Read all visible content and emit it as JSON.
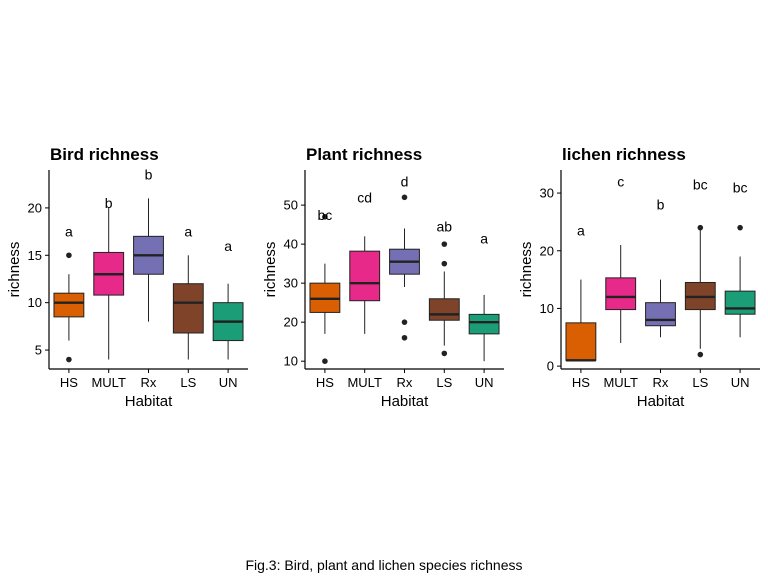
{
  "caption": "Fig.3: Bird, plant and lichen species richness",
  "palette": {
    "HS": "#d95f02",
    "MULT": "#e7298a",
    "Rx": "#7570b3",
    "LS": "#7f432a",
    "UN": "#1b9e77"
  },
  "chart_data": [
    {
      "type": "box",
      "title": "Bird richness",
      "xlabel": "Habitat",
      "ylabel": "richness",
      "ylim": [
        3,
        24
      ],
      "yticks": [
        5,
        10,
        15,
        20
      ],
      "categories": [
        "HS",
        "MULT",
        "Rx",
        "LS",
        "UN"
      ],
      "boxes": [
        {
          "category": "HS",
          "whisker_low": 6,
          "q1": 8.5,
          "median": 10,
          "q3": 11,
          "whisker_high": 13,
          "outliers": [
            4,
            15
          ],
          "letter": "a",
          "letter_y": 17.5
        },
        {
          "category": "MULT",
          "whisker_low": 4,
          "q1": 10.8,
          "median": 13,
          "q3": 15.3,
          "whisker_high": 20,
          "outliers": [],
          "letter": "b",
          "letter_y": 20.5
        },
        {
          "category": "Rx",
          "whisker_low": 8,
          "q1": 13,
          "median": 15,
          "q3": 17,
          "whisker_high": 21,
          "outliers": [],
          "letter": "b",
          "letter_y": 23.5
        },
        {
          "category": "LS",
          "whisker_low": 4,
          "q1": 6.8,
          "median": 10,
          "q3": 12,
          "whisker_high": 15,
          "outliers": [],
          "letter": "a",
          "letter_y": 17.5
        },
        {
          "category": "UN",
          "whisker_low": 4,
          "q1": 6,
          "median": 8,
          "q3": 10,
          "whisker_high": 12,
          "outliers": [],
          "letter": "a",
          "letter_y": 16
        }
      ]
    },
    {
      "type": "box",
      "title": "Plant richness",
      "xlabel": "Habitat",
      "ylabel": "richness",
      "ylim": [
        8,
        59
      ],
      "yticks": [
        10,
        20,
        30,
        40,
        50
      ],
      "categories": [
        "HS",
        "MULT",
        "Rx",
        "LS",
        "UN"
      ],
      "boxes": [
        {
          "category": "HS",
          "whisker_low": 17,
          "q1": 22.5,
          "median": 26,
          "q3": 30,
          "whisker_high": 35,
          "outliers": [
            10,
            47
          ],
          "letter": "bc",
          "letter_y": 47.5
        },
        {
          "category": "MULT",
          "whisker_low": 17,
          "q1": 25.5,
          "median": 30,
          "q3": 38.2,
          "whisker_high": 42,
          "outliers": [],
          "letter": "cd",
          "letter_y": 52
        },
        {
          "category": "Rx",
          "whisker_low": 29,
          "q1": 32.3,
          "median": 35.5,
          "q3": 38.7,
          "whisker_high": 44,
          "outliers": [
            20,
            16,
            52
          ],
          "letter": "d",
          "letter_y": 56
        },
        {
          "category": "LS",
          "whisker_low": 14,
          "q1": 20.5,
          "median": 22,
          "q3": 26,
          "whisker_high": 33,
          "outliers": [
            12,
            35,
            40
          ],
          "letter": "ab",
          "letter_y": 44.5
        },
        {
          "category": "UN",
          "whisker_low": 10,
          "q1": 17,
          "median": 20,
          "q3": 22,
          "whisker_high": 27,
          "outliers": [],
          "letter": "a",
          "letter_y": 41.5
        }
      ]
    },
    {
      "type": "box",
      "title": "lichen richness",
      "xlabel": "Habitat",
      "ylabel": "richness",
      "ylim": [
        -0.5,
        34
      ],
      "yticks": [
        0,
        10,
        20,
        30
      ],
      "categories": [
        "HS",
        "MULT",
        "Rx",
        "LS",
        "UN"
      ],
      "boxes": [
        {
          "category": "HS",
          "whisker_low": 1,
          "q1": 1,
          "median": 1,
          "q3": 7.5,
          "whisker_high": 15,
          "outliers": [],
          "letter": "a",
          "letter_y": 23.5
        },
        {
          "category": "MULT",
          "whisker_low": 4,
          "q1": 9.8,
          "median": 12,
          "q3": 15.3,
          "whisker_high": 21,
          "outliers": [],
          "letter": "c",
          "letter_y": 32
        },
        {
          "category": "Rx",
          "whisker_low": 5,
          "q1": 7,
          "median": 8,
          "q3": 11,
          "whisker_high": 15,
          "outliers": [],
          "letter": "b",
          "letter_y": 28
        },
        {
          "category": "LS",
          "whisker_low": 3,
          "q1": 9.8,
          "median": 12,
          "q3": 14.5,
          "whisker_high": 24,
          "outliers": [
            2,
            24
          ],
          "letter": "bc",
          "letter_y": 31.5
        },
        {
          "category": "UN",
          "whisker_low": 5,
          "q1": 9,
          "median": 10,
          "q3": 13,
          "whisker_high": 19,
          "outliers": [
            24
          ],
          "letter": "bc",
          "letter_y": 31
        }
      ]
    }
  ]
}
